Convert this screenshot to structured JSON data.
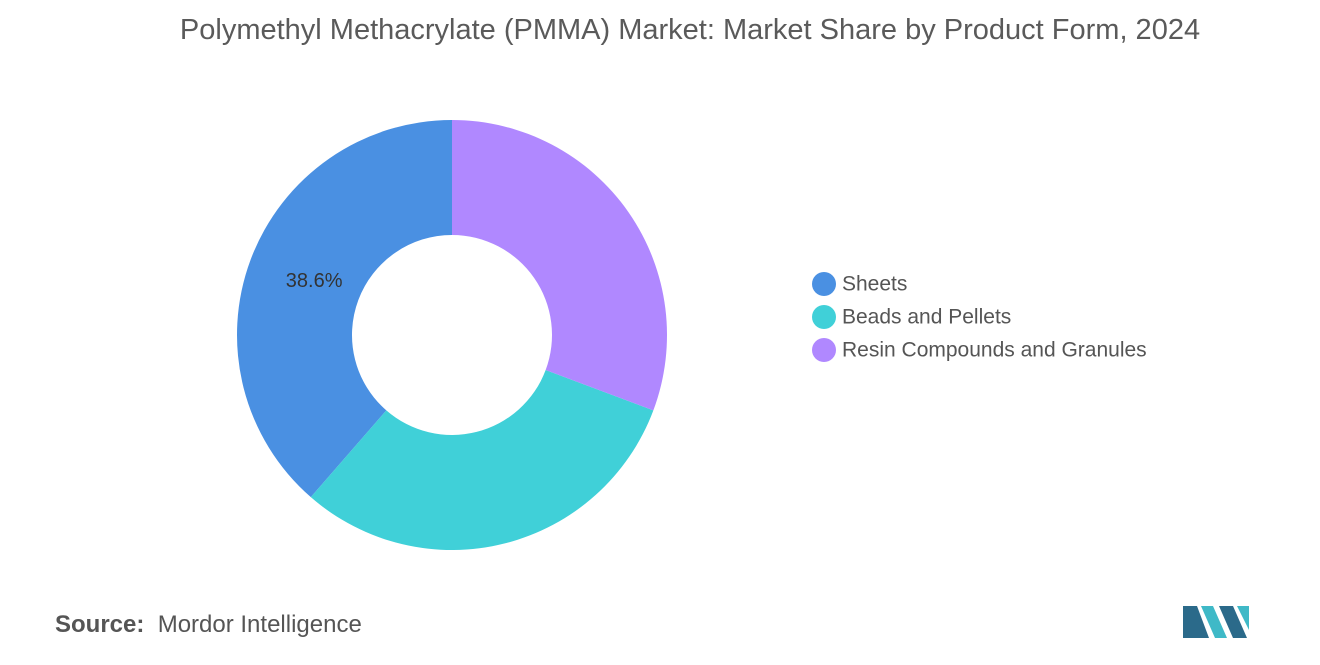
{
  "chart_data": {
    "type": "donut",
    "title": "Polymethyl Methacrylate (PMMA) Market: Market Share by Product Form, 2024",
    "series": [
      {
        "name": "Sheets",
        "color": "#4a90e2",
        "values": [
          38.6
        ],
        "value_labels": [
          "38.6%"
        ]
      },
      {
        "name": "Beads and Pellets",
        "color": "#40d0d8",
        "values": [
          30.7
        ]
      },
      {
        "name": "Resin Compounds and Granules",
        "color": "#b088ff",
        "values": [
          30.7
        ]
      }
    ],
    "source_label": "Source:",
    "source": "Mordor Intelligence"
  }
}
